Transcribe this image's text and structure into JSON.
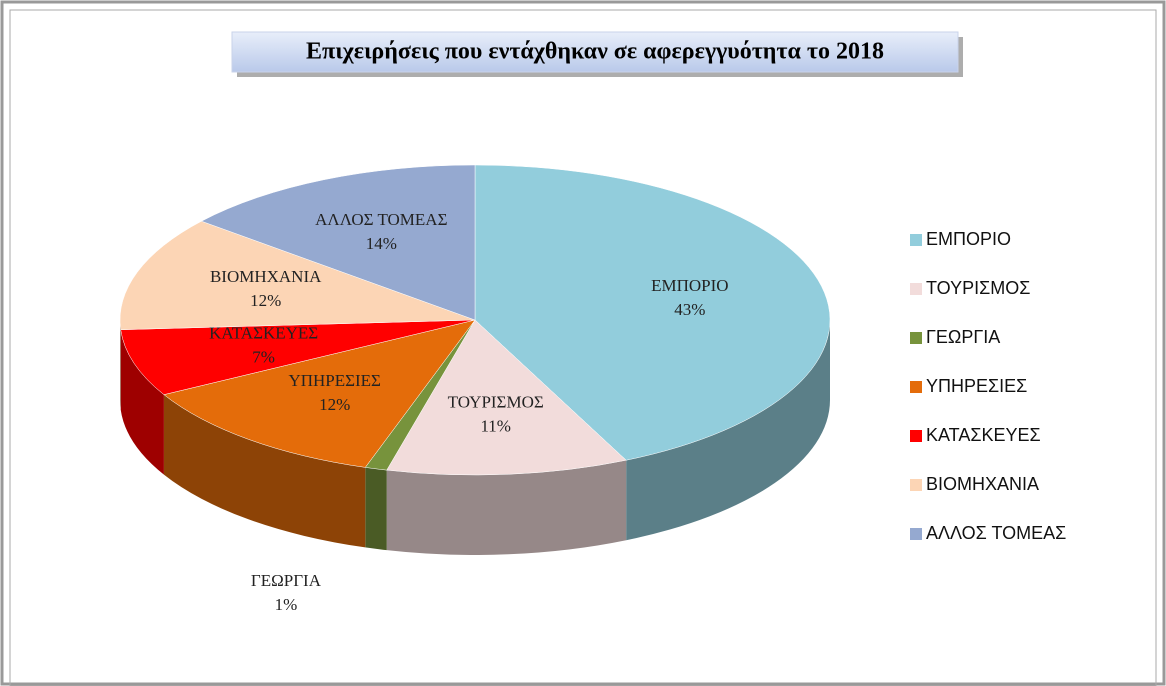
{
  "chart_data": {
    "type": "pie",
    "title": "Επιχειρήσεις που εντάχθηκαν σε αφερεγγυότητα το 2018",
    "categories": [
      "ΕΜΠΟΡΙΟ",
      "ΤΟΥΡΙΣΜΟΣ",
      "ΓΕΩΡΓΙΑ",
      "ΥΠΗΡΕΣΙΕΣ",
      "ΚΑΤΑΣΚΕΥΕΣ",
      "ΒΙΟΜΗΧΑΝΙΑ",
      "ΑΛΛΟΣ ΤΟΜΕΑΣ"
    ],
    "values": [
      43,
      11,
      1,
      12,
      7,
      12,
      14
    ],
    "value_labels": [
      "43%",
      "11%",
      "1%",
      "12%",
      "7%",
      "12%",
      "14%"
    ],
    "colors": [
      "#92CDDC",
      "#F2DCDB",
      "#77933C",
      "#E46C0A",
      "#FF0000",
      "#FCD5B5",
      "#95A9D0"
    ],
    "legend": "right"
  }
}
